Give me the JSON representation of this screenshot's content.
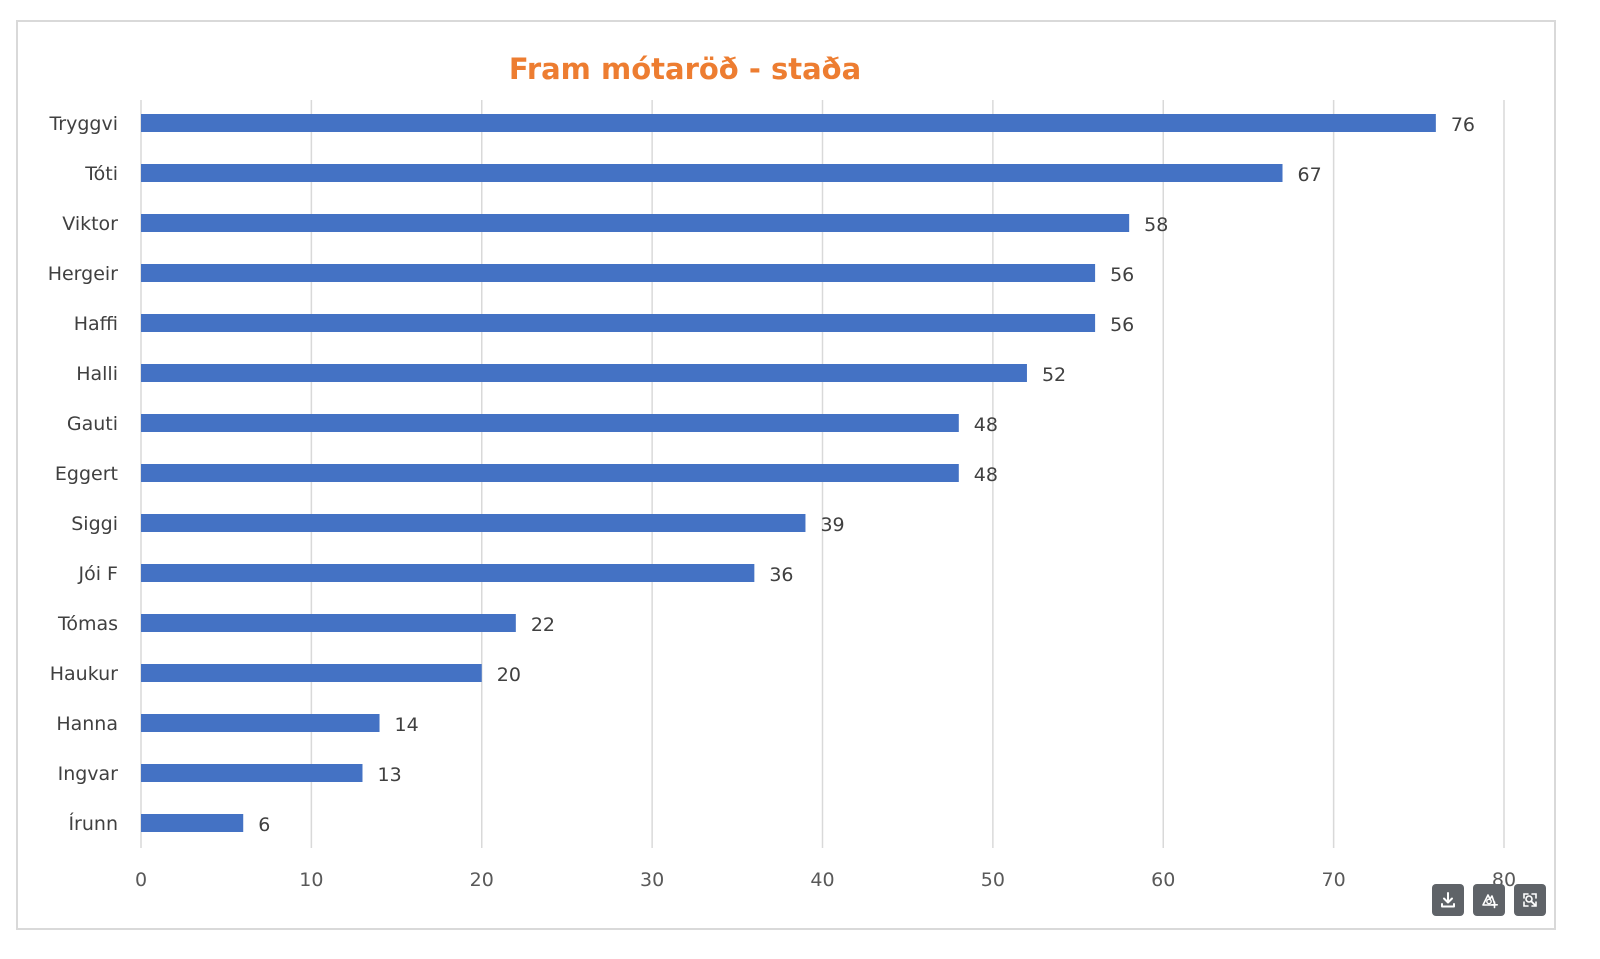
{
  "chart_data": {
    "type": "bar",
    "orientation": "horizontal",
    "title": "Fram mótaröð - staða",
    "xlabel": "",
    "ylabel": "",
    "categories": [
      "Tryggvi",
      "Tóti",
      "Viktor",
      "Hergeir",
      "Haffi",
      "Halli",
      "Gauti",
      "Eggert",
      "Siggi",
      "Jói F",
      "Tómas",
      "Haukur",
      "Hanna",
      "Ingvar",
      "Írunn"
    ],
    "values": [
      76,
      67,
      58,
      56,
      56,
      52,
      48,
      48,
      39,
      36,
      22,
      20,
      14,
      13,
      6
    ],
    "xlim": [
      0,
      80
    ],
    "xticks": [
      "0",
      "10",
      "20",
      "30",
      "40",
      "50",
      "60",
      "70",
      "80"
    ],
    "grid": true,
    "data_labels": true,
    "legend": "none"
  },
  "colors": {
    "bar": "#4472c4",
    "title": "#ed7d31",
    "gridline": "#d9d9d9",
    "label": "#404040",
    "tick": "#595959",
    "toolbar": "#5f6368"
  },
  "toolbar": {
    "icons": [
      "download-icon",
      "screenshot-icon",
      "magnify-icon"
    ]
  }
}
